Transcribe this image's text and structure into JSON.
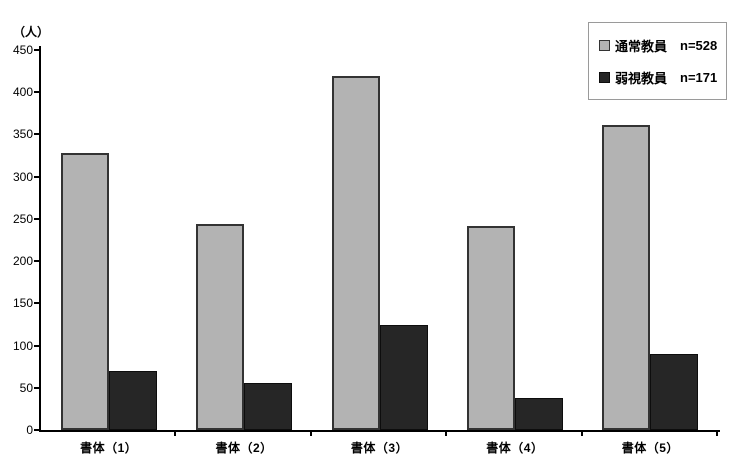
{
  "chart_data": {
    "type": "bar",
    "title": "",
    "xlabel": "",
    "ylabel": "（人）",
    "categories": [
      "書体（1）",
      "書体（2）",
      "書体（3）",
      "書体（4）",
      "書体（5）"
    ],
    "series": [
      {
        "name": "通常教員",
        "n_label": "n=528",
        "slug": "normal-teachers",
        "color": "#b3b3b3",
        "border_color": "#333333",
        "values": [
          328,
          244,
          419,
          242,
          361
        ]
      },
      {
        "name": "弱視教員",
        "n_label": "n=171",
        "slug": "low-vision-teachers",
        "color": "#262626",
        "border_color": "#0d0d0d",
        "values": [
          70,
          56,
          124,
          38,
          90
        ]
      }
    ],
    "ylim": [
      0,
      450
    ],
    "yticks": [
      0,
      50,
      100,
      150,
      200,
      250,
      300,
      350,
      400,
      450
    ],
    "grid": false,
    "legend_position": "top-right"
  }
}
